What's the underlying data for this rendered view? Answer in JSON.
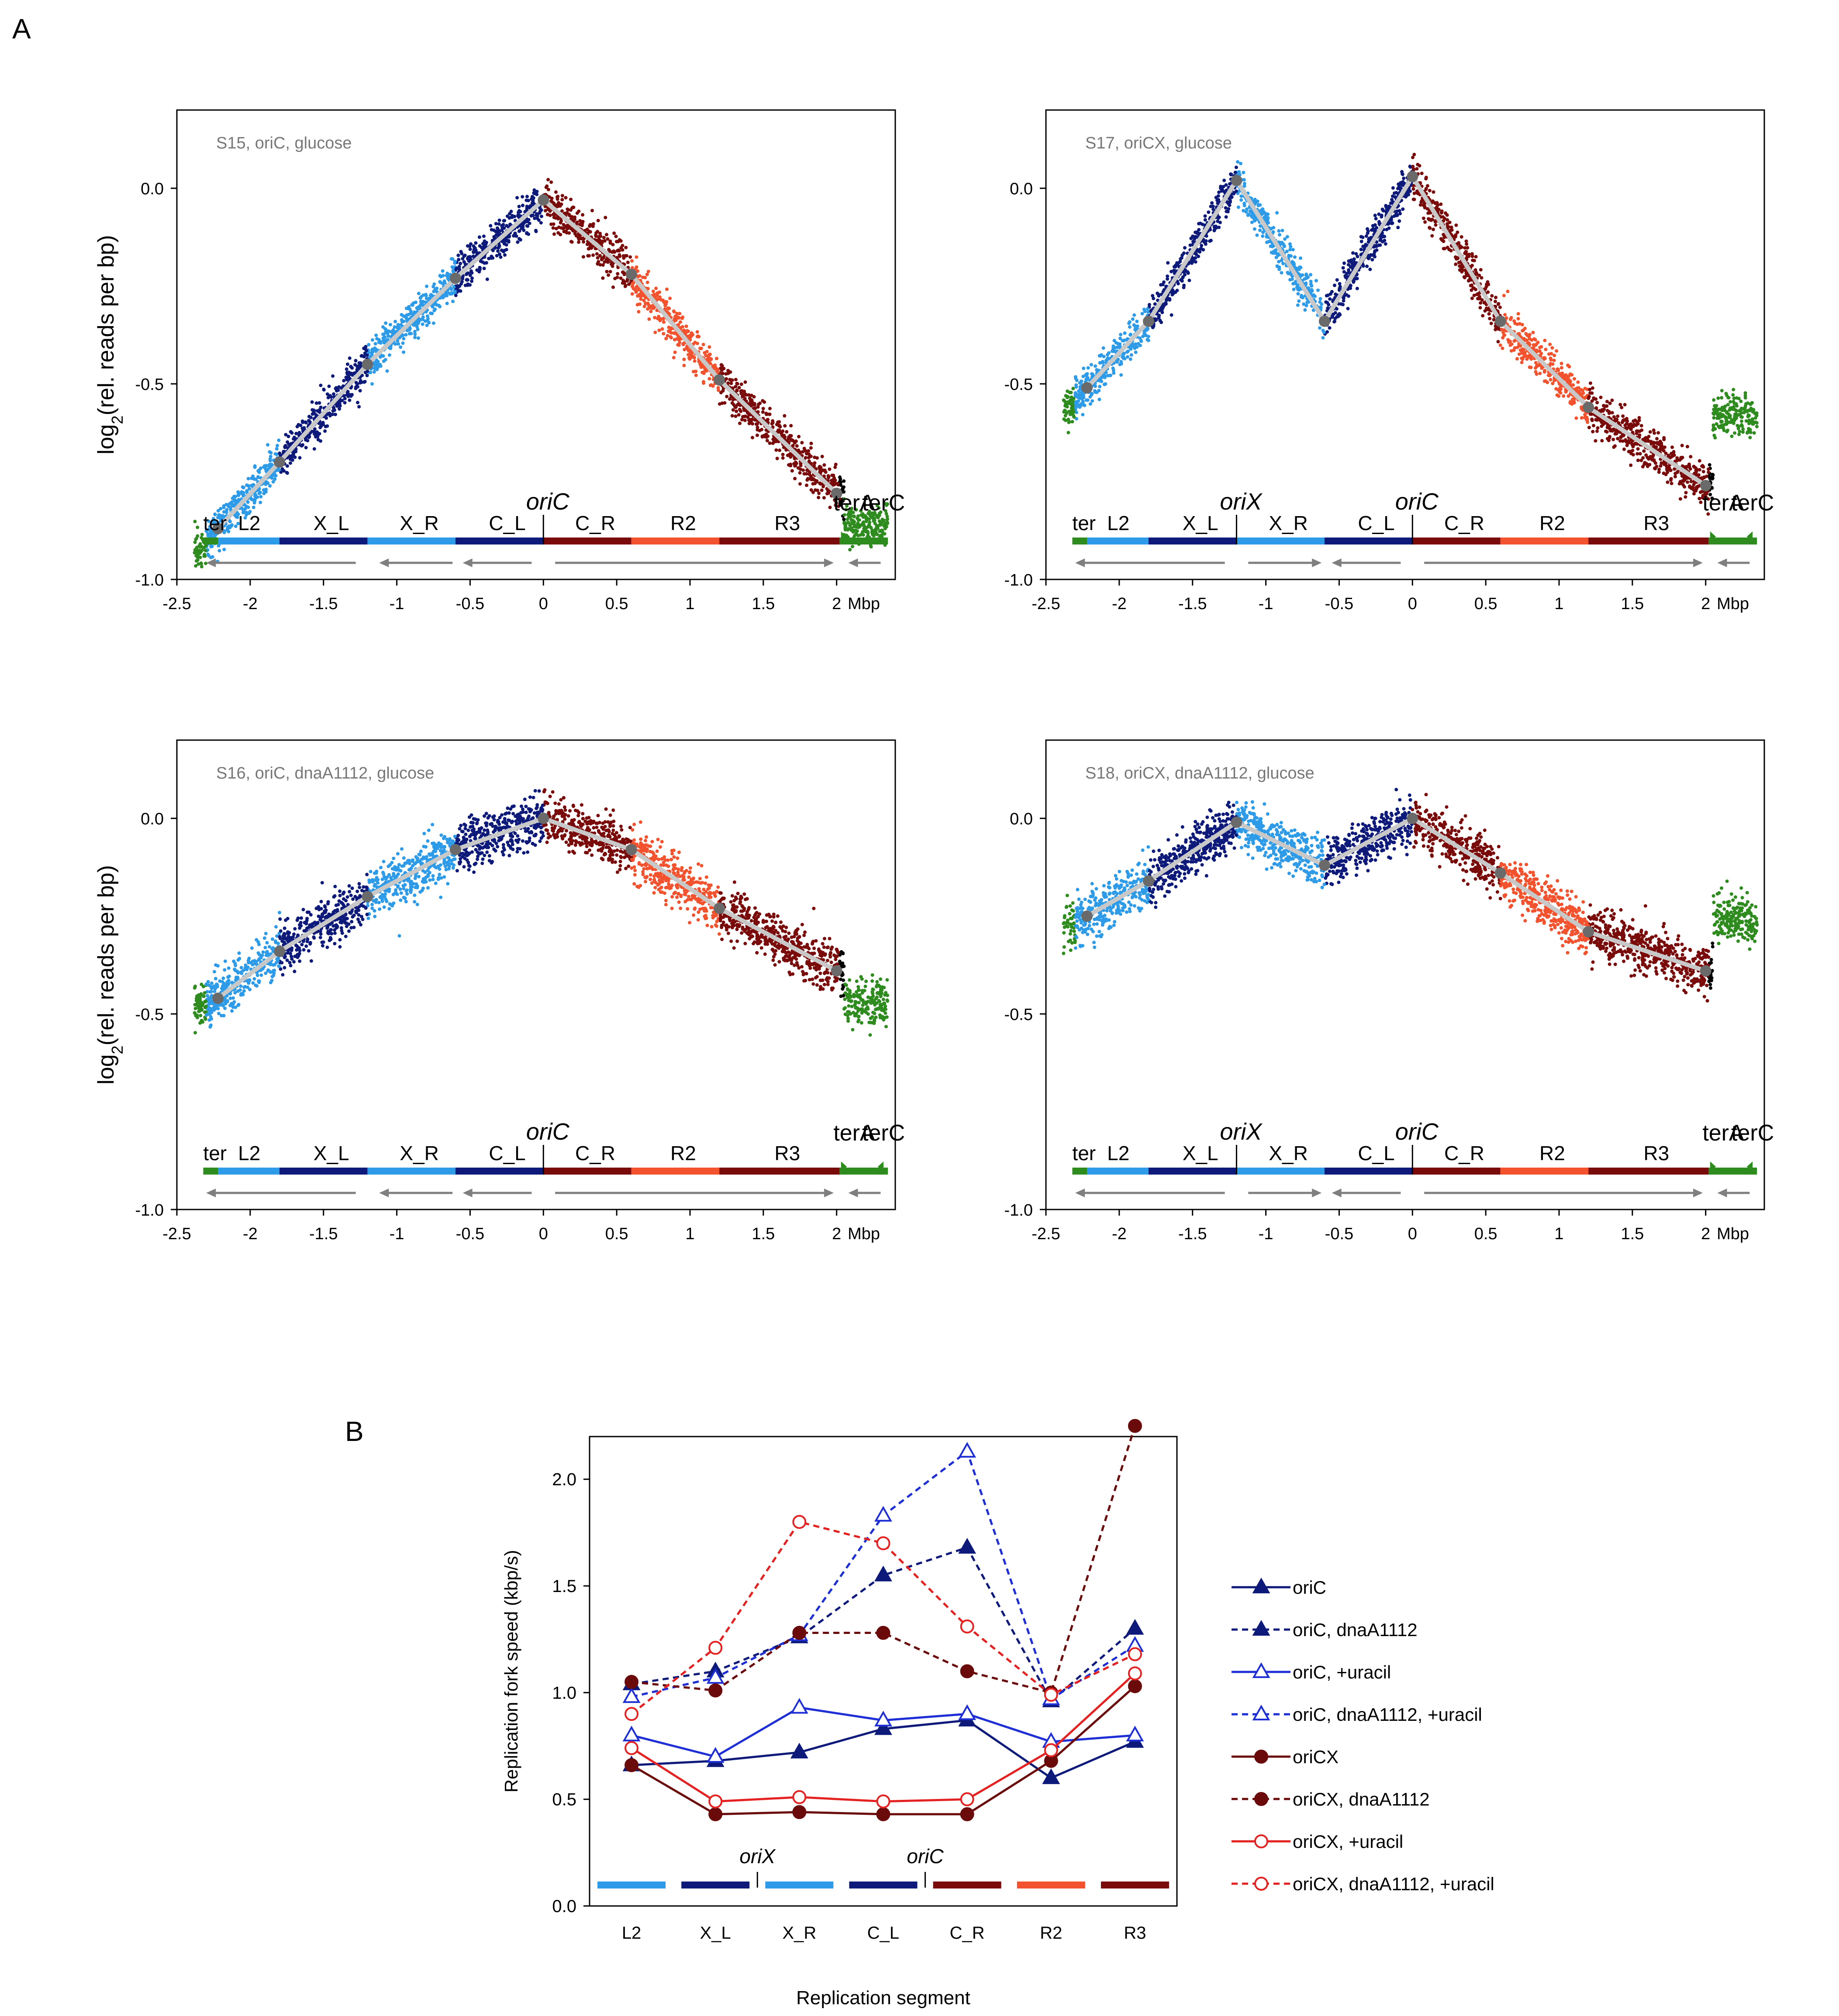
{
  "panel_labels": {
    "a": "A",
    "b": "B"
  },
  "colors": {
    "L2": "#2E9BE8",
    "X_L": "#0E1A7A",
    "X_R": "#2E9BE8",
    "C_L": "#0E1A7A",
    "C_R": "#7A0B0B",
    "R2": "#F2532E",
    "R3": "#7A0B0B",
    "ter": "#2E8B1E",
    "fit": "#C8C8C8",
    "fit_pts": "#6A6A6A",
    "arrows": "#7F7F7F",
    "navy": "#0E1A7A",
    "blue": "#1F2FD6",
    "darkred": "#6B0A0A",
    "red": "#E52222"
  },
  "chart_data": [
    {
      "id": "S15",
      "type": "scatter",
      "annotation": "S15, oriC, glucose",
      "ylabel_prefix": "log",
      "ylabel_sub": "2",
      "ylabel_suffix": "(rel. reads per bp)",
      "xunit": "Mbp",
      "xlim": [
        -2.5,
        2.4
      ],
      "ylim": [
        -1.0,
        0.2
      ],
      "xticks": [
        -2.5,
        -2,
        -1.5,
        -1,
        -0.5,
        0,
        0.5,
        1,
        1.5,
        2
      ],
      "xtick_labels": [
        "-2.5",
        "-2",
        "-1.5",
        "-1",
        "-0.5",
        "0",
        "0.5",
        "1",
        "1.5",
        "2"
      ],
      "yticks": [
        0.0,
        -0.5,
        -1.0
      ],
      "ytick_labels": [
        "0.0",
        "-0.5",
        "-1.0"
      ],
      "series_y": {
        "start": -0.87,
        "x_L": -0.45,
        "x_R": -0.49,
        "end": -0.78,
        "ter_left_level": -0.92,
        "ter_right_level": -0.86
      },
      "fit_x": [
        -2.22,
        -1.8,
        -1.2,
        -0.6,
        0.0,
        0.6,
        1.2,
        2.0
      ],
      "fit_y": [
        -0.87,
        -0.7,
        -0.45,
        -0.23,
        -0.03,
        -0.22,
        -0.49,
        -0.78
      ],
      "origins": [
        {
          "label": "oriC",
          "x": 0.0
        }
      ],
      "ter_labels": {
        "left": "ter",
        "right_a": "terA",
        "right_c": "terC"
      },
      "segments": [
        "L2",
        "X_L",
        "X_R",
        "C_L",
        "C_R",
        "R2",
        "R3"
      ],
      "boundaries": [
        -2.3,
        -1.8,
        -1.2,
        -0.6,
        0.0,
        0.6,
        1.2,
        2.02,
        2.3
      ]
    },
    {
      "id": "S17",
      "type": "scatter",
      "annotation": "S17, oriCX, glucose",
      "xunit": "Mbp",
      "xlim": [
        -2.5,
        2.4
      ],
      "ylim": [
        -1.0,
        0.2
      ],
      "xticks": [
        -2.5,
        -2,
        -1.5,
        -1,
        -0.5,
        0,
        0.5,
        1,
        1.5,
        2
      ],
      "xtick_labels": [
        "-2.5",
        "-2",
        "-1.5",
        "-1",
        "-0.5",
        "0",
        "0.5",
        "1",
        "1.5",
        "2"
      ],
      "yticks": [
        0.0,
        -0.5,
        -1.0
      ],
      "ytick_labels": [
        "0.0",
        "-0.5",
        "-1.0"
      ],
      "fit_x": [
        -2.22,
        -1.8,
        -1.2,
        -0.6,
        0.0,
        0.6,
        1.2,
        2.0
      ],
      "fit_y": [
        -0.51,
        -0.34,
        0.02,
        -0.34,
        0.03,
        -0.34,
        -0.56,
        -0.76
      ],
      "ter_left_level": -0.56,
      "ter_right_level": -0.58,
      "origins": [
        {
          "label": "oriX",
          "x": -1.2
        },
        {
          "label": "oriC",
          "x": 0.0
        }
      ],
      "ter_labels": {
        "left": "ter",
        "right_a": "terA",
        "right_c": "terC"
      },
      "segments": [
        "L2",
        "X_L",
        "X_R",
        "C_L",
        "C_R",
        "R2",
        "R3"
      ]
    },
    {
      "id": "S16",
      "type": "scatter",
      "annotation": "S16, oriC, dnaA1112, glucose",
      "xunit": "Mbp",
      "xlim": [
        -2.5,
        2.4
      ],
      "ylim": [
        -1.0,
        0.2
      ],
      "xticks": [
        -2.5,
        -2,
        -1.5,
        -1,
        -0.5,
        0,
        0.5,
        1,
        1.5,
        2
      ],
      "xtick_labels": [
        "-2.5",
        "-2",
        "-1.5",
        "-1",
        "-0.5",
        "0",
        "0.5",
        "1",
        "1.5",
        "2"
      ],
      "yticks": [
        0.0,
        -0.5,
        -1.0
      ],
      "ytick_labels": [
        "0.0",
        "-0.5",
        "-1.0"
      ],
      "fit_x": [
        -2.22,
        -1.8,
        -1.2,
        -0.6,
        0.0,
        0.6,
        1.2,
        2.0
      ],
      "fit_y": [
        -0.46,
        -0.34,
        -0.2,
        -0.08,
        0.0,
        -0.08,
        -0.23,
        -0.39
      ],
      "ter_left_level": -0.48,
      "ter_right_level": -0.47,
      "origins": [
        {
          "label": "oriC",
          "x": 0.0
        }
      ],
      "ter_labels": {
        "left": "ter",
        "right_a": "terA",
        "right_c": "terC"
      },
      "segments": [
        "L2",
        "X_L",
        "X_R",
        "C_L",
        "C_R",
        "R2",
        "R3"
      ]
    },
    {
      "id": "S18",
      "type": "scatter",
      "annotation": "S18, oriCX, dnaA1112, glucose",
      "xunit": "Mbp",
      "xlim": [
        -2.5,
        2.4
      ],
      "ylim": [
        -1.0,
        0.2
      ],
      "xticks": [
        -2.5,
        -2,
        -1.5,
        -1,
        -0.5,
        0,
        0.5,
        1,
        1.5,
        2
      ],
      "xtick_labels": [
        "-2.5",
        "-2",
        "-1.5",
        "-1",
        "-0.5",
        "0",
        "0.5",
        "1",
        "1.5",
        "2"
      ],
      "yticks": [
        0.0,
        -0.5,
        -1.0
      ],
      "ytick_labels": [
        "0.0",
        "-0.5",
        "-1.0"
      ],
      "fit_x": [
        -2.22,
        -1.8,
        -1.2,
        -0.6,
        0.0,
        0.6,
        1.2,
        2.0
      ],
      "fit_y": [
        -0.25,
        -0.16,
        -0.01,
        -0.12,
        0.0,
        -0.14,
        -0.29,
        -0.39
      ],
      "ter_left_level": -0.27,
      "ter_right_level": -0.26,
      "origins": [
        {
          "label": "oriX",
          "x": -1.2
        },
        {
          "label": "oriC",
          "x": 0.0
        }
      ],
      "ter_labels": {
        "left": "ter",
        "right_a": "terA",
        "right_c": "terC"
      },
      "segments": [
        "L2",
        "X_L",
        "X_R",
        "C_L",
        "C_R",
        "R2",
        "R3"
      ]
    },
    {
      "id": "B",
      "type": "line",
      "title": "",
      "categories": [
        "L2",
        "X_L",
        "X_R",
        "C_L",
        "C_R",
        "R2",
        "R3"
      ],
      "xlabel": "Replication segment",
      "ylabel": "Replication fork speed (kbp/s)",
      "ylim": [
        0.0,
        2.2
      ],
      "yticks": [
        0.0,
        0.5,
        1.0,
        1.5,
        2.0
      ],
      "ytick_labels": [
        "0.0",
        "0.5",
        "1.0",
        "1.5",
        "2.0"
      ],
      "origin_marks": [
        {
          "label": "oriX",
          "between": [
            1,
            2
          ]
        },
        {
          "label": "oriC",
          "between": [
            3,
            4
          ]
        }
      ],
      "legend_position": "right",
      "series": [
        {
          "name": "oriC",
          "values": [
            0.66,
            0.68,
            0.72,
            0.83,
            0.87,
            0.6,
            0.77
          ],
          "color": "#0E1A7A",
          "dash": false,
          "marker": "triangle",
          "filled": true
        },
        {
          "name": "oriC, dnaA1112",
          "values": [
            1.04,
            1.1,
            1.26,
            1.55,
            1.68,
            0.96,
            1.3
          ],
          "color": "#0E1A7A",
          "dash": true,
          "marker": "triangle",
          "filled": true
        },
        {
          "name": "oriC, +uracil",
          "values": [
            0.8,
            0.7,
            0.93,
            0.87,
            0.9,
            0.77,
            0.8
          ],
          "color": "#1F2FD6",
          "dash": false,
          "marker": "triangle",
          "filled": false
        },
        {
          "name": "oriC, dnaA1112, +uracil",
          "values": [
            0.98,
            1.07,
            1.27,
            1.83,
            2.13,
            0.97,
            1.22
          ],
          "color": "#1F2FD6",
          "dash": true,
          "marker": "triangle",
          "filled": false
        },
        {
          "name": "oriCX",
          "values": [
            0.66,
            0.43,
            0.44,
            0.43,
            0.43,
            0.68,
            1.03
          ],
          "color": "#6B0A0A",
          "dash": false,
          "marker": "circle",
          "filled": true
        },
        {
          "name": "oriCX, dnaA1112",
          "values": [
            1.05,
            1.01,
            1.28,
            1.28,
            1.1,
            1.0,
            2.25
          ],
          "color": "#6B0A0A",
          "dash": true,
          "marker": "circle",
          "filled": true
        },
        {
          "name": "oriCX, +uracil",
          "values": [
            0.74,
            0.49,
            0.51,
            0.49,
            0.5,
            0.73,
            1.09
          ],
          "color": "#E52222",
          "dash": false,
          "marker": "circle",
          "filled": false
        },
        {
          "name": "oriCX, dnaA1112, +uracil",
          "values": [
            0.9,
            1.21,
            1.8,
            1.7,
            1.31,
            0.99,
            1.18
          ],
          "color": "#E52222",
          "dash": true,
          "marker": "circle",
          "filled": false
        }
      ]
    }
  ]
}
